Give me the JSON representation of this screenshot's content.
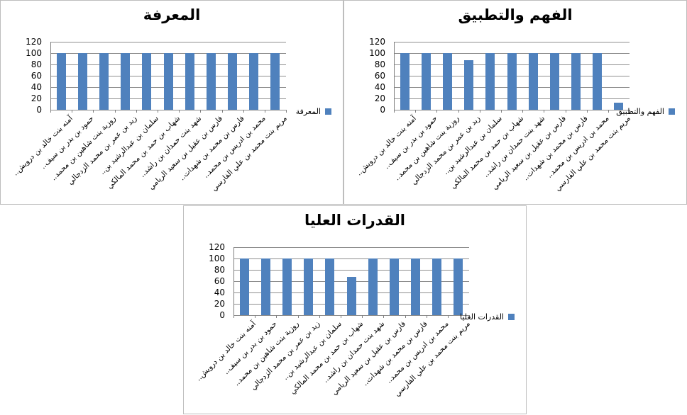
{
  "colors": {
    "bar": "#4F81BD",
    "gridline": "#8e8e8e",
    "axis": "#7f7f7f",
    "panel_border": "#bdbdbd",
    "background": "#ffffff",
    "text": "#000000"
  },
  "y_axis": {
    "min": 0,
    "max": 120,
    "step": 20,
    "tick_labels": [
      "120",
      "100",
      "80",
      "60",
      "40",
      "20",
      "0"
    ]
  },
  "chart_data": [
    {
      "type": "bar",
      "title": "المعرفة",
      "legend": "المعرفة",
      "legend_position": "right",
      "grid": true,
      "bar_color": "#4F81BD",
      "ylim": [
        0,
        120
      ],
      "ytick_step": 20,
      "categories": [
        "آمنه بنت خالد بن درويش..",
        "حمود بن بدر بن سيف..",
        "روزية بنت شاهين بن محمد..",
        "زيد بن عمر بن محمد الزدجالي",
        "سلمان بن عبدالرشيد بن..",
        "شهاب بن حمد بن محمد المالكي",
        "شهد بنت حمدان بن راشد..",
        "فارس بن عقيل بن سعيد الريامي",
        "فارس بن محمد بن شهدات..",
        "محمد بن ادريس بن محمد..",
        "مريم بنت محمد بن علي الفارسي"
      ],
      "values": [
        100,
        100,
        100,
        100,
        100,
        100,
        100,
        100,
        100,
        100,
        100
      ]
    },
    {
      "type": "bar",
      "title": "الفهم والتطبيق",
      "legend": "الفهم والتطبيق",
      "legend_position": "right",
      "grid": true,
      "bar_color": "#4F81BD",
      "ylim": [
        0,
        120
      ],
      "ytick_step": 20,
      "categories": [
        "آمنه بنت خالد بن درويش..",
        "حمود بن بدر بن سيف..",
        "روزية بنت شاهين بن محمد..",
        "زيد بن عمر بن محمد الزدجالي",
        "سلمان بن عبدالرشيد بن..",
        "شهاب بن حمد بن محمد المالكي",
        "شهد بنت حمدان بن راشد..",
        "فارس بن عقيل بن سعيد الريامي",
        "فارس بن محمد بن شهدات..",
        "محمد بن ادريس بن محمد..",
        "مريم بنت محمد بن علي الفارسي"
      ],
      "values": [
        100,
        100,
        100,
        88,
        100,
        100,
        100,
        100,
        100,
        100,
        12
      ]
    },
    {
      "type": "bar",
      "title": "القدرات العليا",
      "legend": "القدرات العليا",
      "legend_position": "right",
      "grid": true,
      "bar_color": "#4F81BD",
      "ylim": [
        0,
        120
      ],
      "ytick_step": 20,
      "categories": [
        "آمنه بنت خالد بن درويش..",
        "حمود بن بدر بن سيف..",
        "روزية بنت شاهين بن محمد..",
        "زيد بن عمر بن محمد الزدجالي",
        "سلمان بن عبدالرشيد بن..",
        "شهاب بن حمد بن محمد المالكي",
        "شهد بنت حمدان بن راشد..",
        "فارس بن عقيل بن سعيد الريامي",
        "فارس بن محمد بن شهدات..",
        "محمد بن ادريس بن محمد..",
        "مريم بنت محمد بن علي الفارسي"
      ],
      "values": [
        100,
        100,
        100,
        100,
        100,
        67,
        100,
        100,
        100,
        100,
        100
      ]
    }
  ]
}
